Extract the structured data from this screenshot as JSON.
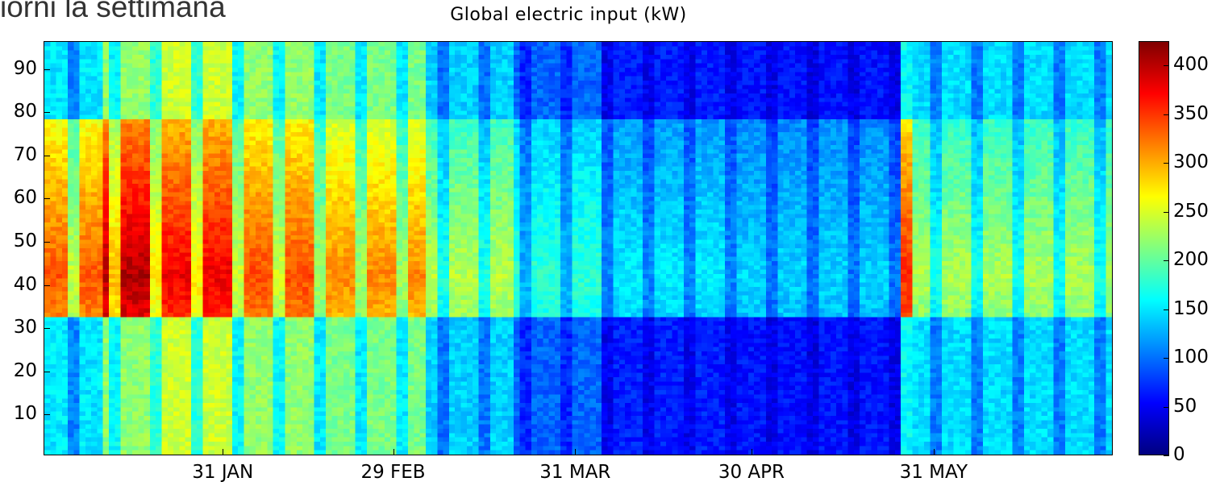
{
  "heading": "iorni la settimana",
  "chart_data": {
    "type": "heatmap",
    "title": "Global electric input (kW)",
    "x_tick_labels": [
      "31 JAN",
      "29 FEB",
      "31 MAR",
      "30 APR",
      "31 MAY"
    ],
    "x_tick_day_of_year": [
      31,
      60,
      91,
      121,
      152
    ],
    "x_range_day_of_year": [
      1,
      182
    ],
    "y_range": [
      1,
      96
    ],
    "y_ticks": [
      10,
      20,
      30,
      40,
      50,
      60,
      70,
      80,
      90
    ],
    "colorbar_ticks": [
      0,
      50,
      100,
      150,
      200,
      250,
      300,
      350,
      400
    ],
    "colorbar_range": [
      0,
      425
    ],
    "colormap": "jet",
    "grid": false,
    "regimes": [
      {
        "days": [
          1,
          10
        ],
        "daytime": 320,
        "night": 150
      },
      {
        "days": [
          11,
          18
        ],
        "daytime": 385,
        "night": 220
      },
      {
        "days": [
          19,
          32
        ],
        "daytime": 360,
        "night": 245
      },
      {
        "days": [
          33,
          46
        ],
        "daytime": 325,
        "night": 220
      },
      {
        "days": [
          47,
          65
        ],
        "daytime": 300,
        "night": 210
      },
      {
        "days": [
          66,
          80
        ],
        "daytime": 225,
        "night": 140
      },
      {
        "days": [
          81,
          95
        ],
        "daytime": 170,
        "night": 95
      },
      {
        "days": [
          96,
          118
        ],
        "daytime": 145,
        "night": 65
      },
      {
        "days": [
          119,
          146
        ],
        "daytime": 135,
        "night": 60
      },
      {
        "days": [
          147,
          148
        ],
        "daytime": 340,
        "night": 160
      },
      {
        "days": [
          149,
          182
        ],
        "daytime": 220,
        "night": 145
      }
    ]
  }
}
